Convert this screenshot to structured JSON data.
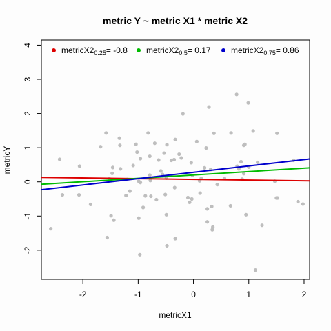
{
  "chart_data": {
    "type": "scatter",
    "title": "metric Y ~ metric X1 * metric X2",
    "xlabel": "metricX1",
    "ylabel": "metricY",
    "xlim": [
      -2.75,
      2.1
    ],
    "ylim": [
      -2.85,
      4.15
    ],
    "xticks": [
      "-2",
      "-1",
      "0",
      "1",
      "2"
    ],
    "xtick_values": [
      -2,
      -1,
      0,
      1,
      2
    ],
    "yticks": [
      "-2",
      "-1",
      "0",
      "1",
      "2",
      "3",
      "4"
    ],
    "ytick_values": [
      -2,
      -1,
      0,
      1,
      2,
      3,
      4
    ],
    "grid": false,
    "legend_position": "top",
    "point_color": "#bebebe",
    "points": [
      [
        -2.58,
        -1.37
      ],
      [
        -2.42,
        0.66
      ],
      [
        -2.37,
        -0.38
      ],
      [
        -2.06,
        0.46
      ],
      [
        -2.07,
        -0.38
      ],
      [
        -1.86,
        -0.66
      ],
      [
        -1.68,
        1.03
      ],
      [
        -1.58,
        1.43
      ],
      [
        -1.56,
        -1.63
      ],
      [
        -1.52,
        0.09
      ],
      [
        -1.49,
        -0.99
      ],
      [
        -1.46,
        0.42
      ],
      [
        -1.47,
        0.25
      ],
      [
        -1.44,
        -1.12
      ],
      [
        -1.34,
        1.28
      ],
      [
        -1.33,
        1.07
      ],
      [
        -1.32,
        0.38
      ],
      [
        -1.2,
        0.07
      ],
      [
        -1.22,
        -0.4
      ],
      [
        -1.15,
        -0.27
      ],
      [
        -1.09,
        0.48
      ],
      [
        -1.02,
        0.87
      ],
      [
        -1.04,
        1.1
      ],
      [
        -0.99,
        0.02
      ],
      [
        -0.96,
        -0.02
      ],
      [
        -0.96,
        0.68
      ],
      [
        -0.99,
        -1.06
      ],
      [
        -0.97,
        -2.13
      ],
      [
        -0.91,
        -0.75
      ],
      [
        -0.87,
        -0.41
      ],
      [
        -0.82,
        1.43
      ],
      [
        -0.79,
        0.75
      ],
      [
        -0.79,
        0.2
      ],
      [
        -0.78,
        0.04
      ],
      [
        -0.77,
        -0.42
      ],
      [
        -0.7,
        1.13
      ],
      [
        -0.67,
        -0.52
      ],
      [
        -0.63,
        0.64
      ],
      [
        -0.59,
        0.32
      ],
      [
        -0.56,
        0.22
      ],
      [
        -0.53,
        0.84
      ],
      [
        -0.51,
        -0.37
      ],
      [
        -0.49,
        0.11
      ],
      [
        -0.48,
        1.09
      ],
      [
        -0.49,
        -0.96
      ],
      [
        -0.48,
        -1.87
      ],
      [
        -0.4,
        0.63
      ],
      [
        -0.35,
        0.65
      ],
      [
        -0.33,
        1.24
      ],
      [
        -0.34,
        -0.17
      ],
      [
        -0.33,
        -1.66
      ],
      [
        -0.26,
        0.81
      ],
      [
        -0.22,
        0.7
      ],
      [
        -0.19,
        1.99
      ],
      [
        -0.1,
        -0.46
      ],
      [
        -0.07,
        -0.6
      ],
      [
        -0.03,
        -0.5
      ],
      [
        -0.04,
        0.56
      ],
      [
        -0.02,
        0.19
      ],
      [
        0.06,
        1.18
      ],
      [
        0.11,
        0.03
      ],
      [
        0.12,
        -0.33
      ],
      [
        0.14,
        0.1
      ],
      [
        0.2,
        0.41
      ],
      [
        0.23,
        0.99
      ],
      [
        0.25,
        -0.79
      ],
      [
        0.25,
        -1.17
      ],
      [
        0.28,
        2.19
      ],
      [
        0.31,
        0.36
      ],
      [
        0.33,
        -0.72
      ],
      [
        0.34,
        -1.4
      ],
      [
        0.35,
        -1.32
      ],
      [
        0.37,
        1.42
      ],
      [
        0.43,
        -0.08
      ],
      [
        0.56,
        0.1
      ],
      [
        0.67,
        -0.7
      ],
      [
        0.68,
        1.43
      ],
      [
        0.78,
        2.56
      ],
      [
        0.79,
        0.46
      ],
      [
        0.82,
        0.38
      ],
      [
        0.86,
        0.59
      ],
      [
        0.88,
        0.08
      ],
      [
        0.91,
        0.24
      ],
      [
        0.91,
        1.07
      ],
      [
        0.93,
        1.1
      ],
      [
        0.95,
        -0.96
      ],
      [
        0.99,
        2.31
      ],
      [
        1.0,
        0.43
      ],
      [
        1.08,
        1.49
      ],
      [
        1.12,
        -2.58
      ],
      [
        1.16,
        0.57
      ],
      [
        1.24,
        -1.27
      ],
      [
        1.47,
        0.02
      ],
      [
        1.51,
        1.42
      ],
      [
        1.5,
        -0.47
      ],
      [
        1.81,
        0.63
      ],
      [
        1.89,
        -0.58
      ],
      [
        1.98,
        -0.65
      ],
      [
        1.52,
        -0.47
      ]
    ],
    "series": [
      {
        "name": "metricX2",
        "subscript": "0.25",
        "value_text": "= -0.8",
        "color": "#dd0000",
        "line": [
          [
            -2.75,
            0.13
          ],
          [
            2.1,
            0.03
          ]
        ]
      },
      {
        "name": "metricX2",
        "subscript": "0.5",
        "value_text": "= 0.17",
        "color": "#00bb00",
        "line": [
          [
            -2.75,
            -0.07
          ],
          [
            2.1,
            0.41
          ]
        ]
      },
      {
        "name": "metricX2",
        "subscript": "0.75",
        "value_text": "= 0.86",
        "color": "#0000cc",
        "line": [
          [
            -2.75,
            -0.23
          ],
          [
            2.1,
            0.67
          ]
        ]
      }
    ]
  }
}
